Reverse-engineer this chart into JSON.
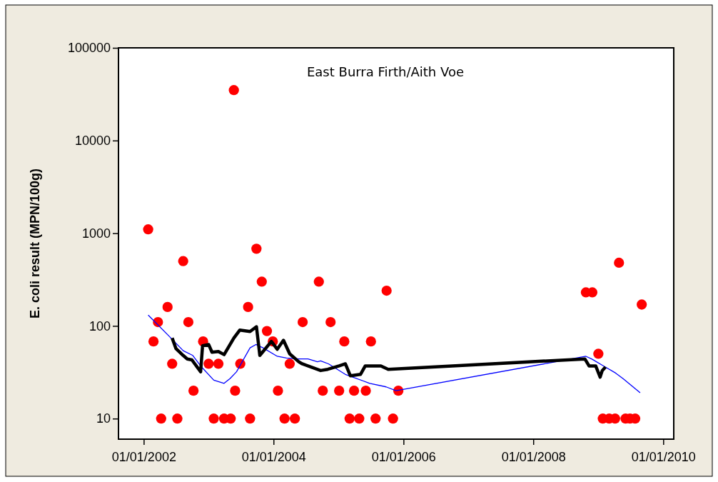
{
  "chart_data": {
    "type": "scatter",
    "title": "East Burra Firth/Aith Voe",
    "ylabel": "E. coli result (MPN/100g)",
    "log": true,
    "grid": false,
    "xlim": [
      "2001-08-12",
      "2010-03-01"
    ],
    "ylim": [
      6,
      100000
    ],
    "xticks": [
      {
        "value": "2002-01-01",
        "label": "01/01/2002"
      },
      {
        "value": "2004-01-01",
        "label": "01/01/2004"
      },
      {
        "value": "2006-01-01",
        "label": "01/01/2006"
      },
      {
        "value": "2008-01-01",
        "label": "01/01/2008"
      },
      {
        "value": "2010-01-01",
        "label": "01/01/2010"
      }
    ],
    "yticks": [
      10,
      100,
      1000,
      10000,
      100000
    ],
    "series": [
      {
        "color": "#ff0000",
        "marker": "circle",
        "x": [
          "2002-01-26",
          "2002-02-25",
          "2002-03-22",
          "2002-04-09",
          "2002-05-15",
          "2002-06-10",
          "2002-07-09",
          "2002-08-11",
          "2002-09-09",
          "2002-10-08",
          "2002-12-01",
          "2003-01-01",
          "2003-01-30",
          "2003-02-25",
          "2003-03-29",
          "2003-05-05",
          "2003-05-23",
          "2003-05-30",
          "2003-06-28",
          "2003-08-11",
          "2003-08-22",
          "2003-09-27",
          "2003-10-27",
          "2003-11-25",
          "2003-12-28",
          "2004-01-26",
          "2004-03-03",
          "2004-04-01",
          "2004-04-30",
          "2004-06-13",
          "2004-09-12",
          "2004-10-04",
          "2004-11-17",
          "2005-01-04",
          "2005-02-02",
          "2005-03-04",
          "2005-03-29",
          "2005-04-27",
          "2005-06-03",
          "2005-07-02",
          "2005-07-28",
          "2005-09-28",
          "2005-11-03",
          "2005-12-03",
          "2008-10-23",
          "2008-11-28",
          "2009-01-01",
          "2009-01-26",
          "2009-03-03",
          "2009-04-05",
          "2009-04-27",
          "2009-06-03",
          "2009-06-28",
          "2009-07-27",
          "2009-09-02"
        ],
        "values": [
          1100,
          68,
          110,
          10,
          160,
          39,
          10,
          500,
          110,
          20,
          68,
          39,
          10,
          39,
          10,
          10,
          35000,
          20,
          39,
          160,
          10,
          680,
          300,
          88,
          68,
          20,
          10,
          39,
          10,
          110,
          300,
          20,
          110,
          20,
          68,
          10,
          20,
          10,
          20,
          68,
          10,
          240,
          10,
          20,
          230,
          230,
          50,
          10,
          10,
          10,
          480,
          10,
          10,
          10,
          170
        ]
      },
      {
        "type": "line",
        "color": "#0000ff",
        "marker": "none",
        "x": [
          "2002-01-26",
          "2002-06-03",
          "2002-08-11",
          "2002-10-04",
          "2002-11-17",
          "2003-01-30",
          "2003-03-29",
          "2003-05-01",
          "2003-06-07",
          "2003-08-22",
          "2003-09-24",
          "2003-11-03",
          "2004-01-22",
          "2004-03-14",
          "2004-05-22",
          "2004-07-13",
          "2004-09-04",
          "2004-09-22",
          "2004-11-05",
          "2005-02-08",
          "2005-06-25",
          "2005-09-25",
          "2005-11-20",
          "2008-10-23",
          "2008-11-24",
          "2009-01-30",
          "2009-04-08",
          "2009-05-20",
          "2009-08-24"
        ],
        "values": [
          131,
          74,
          54,
          48,
          37,
          26,
          24,
          27,
          32,
          58,
          63,
          58,
          47,
          45,
          44,
          44,
          41,
          42,
          39,
          30,
          24,
          22,
          20,
          47,
          44,
          37,
          31,
          27,
          19
        ]
      },
      {
        "type": "line",
        "color": "#000000",
        "marker": "none",
        "x": [
          "2002-06-10",
          "2002-07-01",
          "2002-08-11",
          "2002-09-03",
          "2002-09-29",
          "2002-11-17",
          "2002-11-28",
          "2003-01-01",
          "2003-01-20",
          "2003-02-25",
          "2003-03-29",
          "2003-05-23",
          "2003-06-25",
          "2003-08-22",
          "2003-09-27",
          "2003-10-16",
          "2003-12-20",
          "2004-01-22",
          "2004-02-26",
          "2004-04-01",
          "2004-05-22",
          "2004-06-10",
          "2004-09-22",
          "2004-11-01",
          "2005-01-04",
          "2005-02-08",
          "2005-03-08",
          "2005-05-04",
          "2005-05-31",
          "2005-08-27",
          "2005-10-07",
          "2008-10-17",
          "2008-11-10",
          "2008-12-17",
          "2009-01-11",
          "2009-01-23",
          "2009-02-10"
        ],
        "values": [
          74,
          57,
          48,
          44,
          43,
          32,
          61,
          63,
          52,
          53,
          49,
          74,
          90,
          87,
          98,
          48,
          68,
          56,
          70,
          50,
          41,
          39,
          33,
          34,
          37,
          39,
          29,
          30,
          37,
          37,
          34,
          44,
          37,
          37,
          28,
          33,
          36
        ]
      }
    ]
  }
}
